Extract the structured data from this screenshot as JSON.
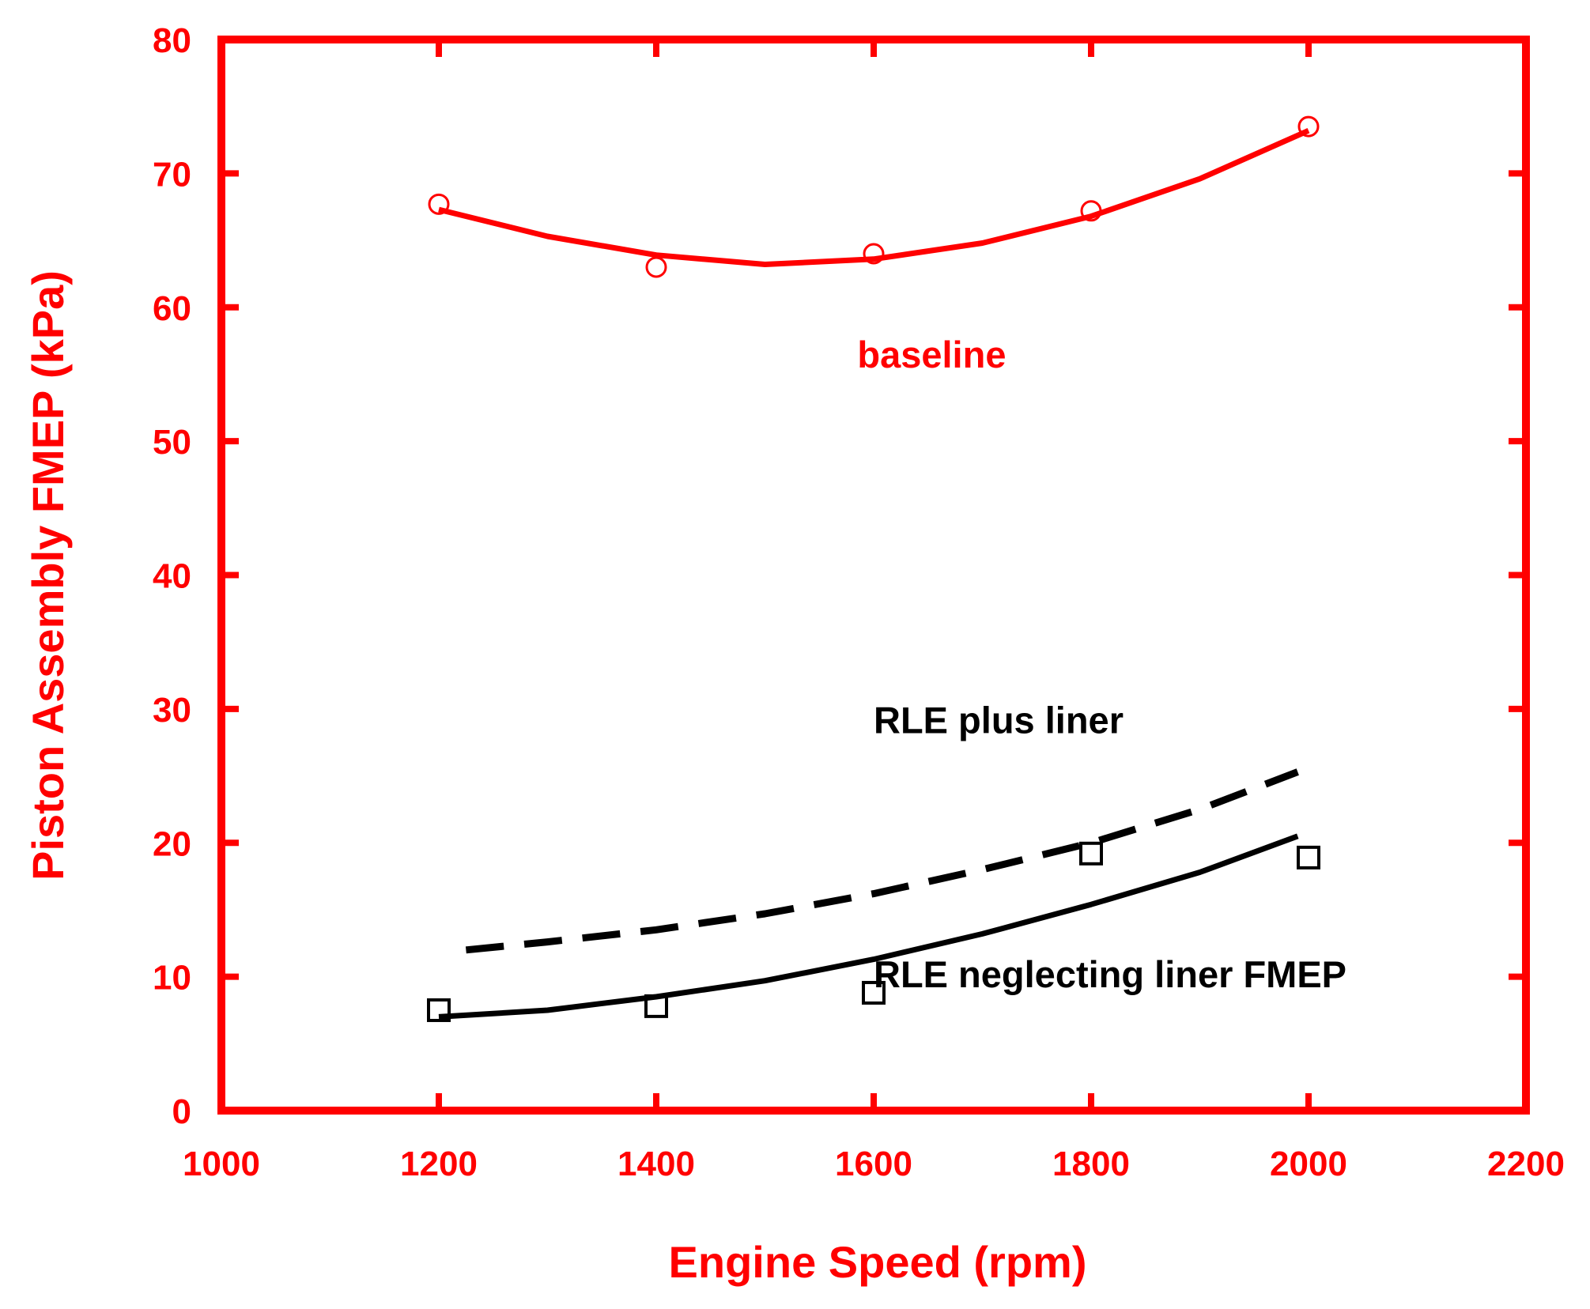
{
  "chart_data": {
    "type": "line",
    "title": "",
    "xlabel": "Engine Speed (rpm)",
    "ylabel": "Piston Assembly FMEP (kPa)",
    "xlim": [
      1000,
      2200
    ],
    "ylim": [
      0,
      80
    ],
    "xticks": [
      1000,
      1200,
      1400,
      1600,
      1800,
      2000,
      2200
    ],
    "yticks": [
      0,
      10,
      20,
      30,
      40,
      50,
      60,
      70,
      80
    ],
    "grid": false,
    "colors": {
      "axis": "#ff0000",
      "baseline": "#ff0000",
      "rle": "#000000"
    },
    "series": [
      {
        "name": "baseline",
        "label": "baseline",
        "style": "solid",
        "color": "#ff0000",
        "marker": "circle",
        "points": [
          {
            "x": 1200,
            "y": 67.7
          },
          {
            "x": 1400,
            "y": 63.0
          },
          {
            "x": 1600,
            "y": 64.0
          },
          {
            "x": 1800,
            "y": 67.2
          },
          {
            "x": 2000,
            "y": 73.5
          }
        ],
        "fit": [
          {
            "x": 1200,
            "y": 67.3
          },
          {
            "x": 1300,
            "y": 65.3
          },
          {
            "x": 1400,
            "y": 63.9
          },
          {
            "x": 1500,
            "y": 63.2
          },
          {
            "x": 1600,
            "y": 63.6
          },
          {
            "x": 1700,
            "y": 64.8
          },
          {
            "x": 1800,
            "y": 66.8
          },
          {
            "x": 1900,
            "y": 69.6
          },
          {
            "x": 2000,
            "y": 73.2
          }
        ]
      },
      {
        "name": "rle-plus-liner",
        "label": "RLE plus liner",
        "style": "dashed",
        "color": "#000000",
        "marker": "none",
        "fit": [
          {
            "x": 1225,
            "y": 12.0
          },
          {
            "x": 1300,
            "y": 12.6
          },
          {
            "x": 1400,
            "y": 13.5
          },
          {
            "x": 1500,
            "y": 14.7
          },
          {
            "x": 1600,
            "y": 16.2
          },
          {
            "x": 1700,
            "y": 18.0
          },
          {
            "x": 1800,
            "y": 20.0
          },
          {
            "x": 1900,
            "y": 22.5
          },
          {
            "x": 1990,
            "y": 25.3
          }
        ]
      },
      {
        "name": "rle-neglecting-liner",
        "label": "RLE neglecting liner FMEP",
        "style": "solid",
        "color": "#000000",
        "marker": "square",
        "points": [
          {
            "x": 1200,
            "y": 7.5
          },
          {
            "x": 1400,
            "y": 7.8
          },
          {
            "x": 1600,
            "y": 8.8
          },
          {
            "x": 1800,
            "y": 19.2
          },
          {
            "x": 2000,
            "y": 18.9
          }
        ],
        "fit": [
          {
            "x": 1200,
            "y": 7.0
          },
          {
            "x": 1300,
            "y": 7.5
          },
          {
            "x": 1400,
            "y": 8.5
          },
          {
            "x": 1500,
            "y": 9.7
          },
          {
            "x": 1600,
            "y": 11.3
          },
          {
            "x": 1700,
            "y": 13.2
          },
          {
            "x": 1800,
            "y": 15.4
          },
          {
            "x": 1900,
            "y": 17.8
          },
          {
            "x": 1990,
            "y": 20.5
          }
        ]
      }
    ],
    "annotations": [
      {
        "text": "baseline",
        "x": 1585,
        "y": 55.5,
        "color": "#ff0000"
      },
      {
        "text": "RLE plus liner",
        "x": 1600,
        "y": 28.2,
        "color": "#000000"
      },
      {
        "text": "RLE neglecting liner FMEP",
        "x": 1600,
        "y": 9.2,
        "color": "#000000"
      }
    ]
  }
}
